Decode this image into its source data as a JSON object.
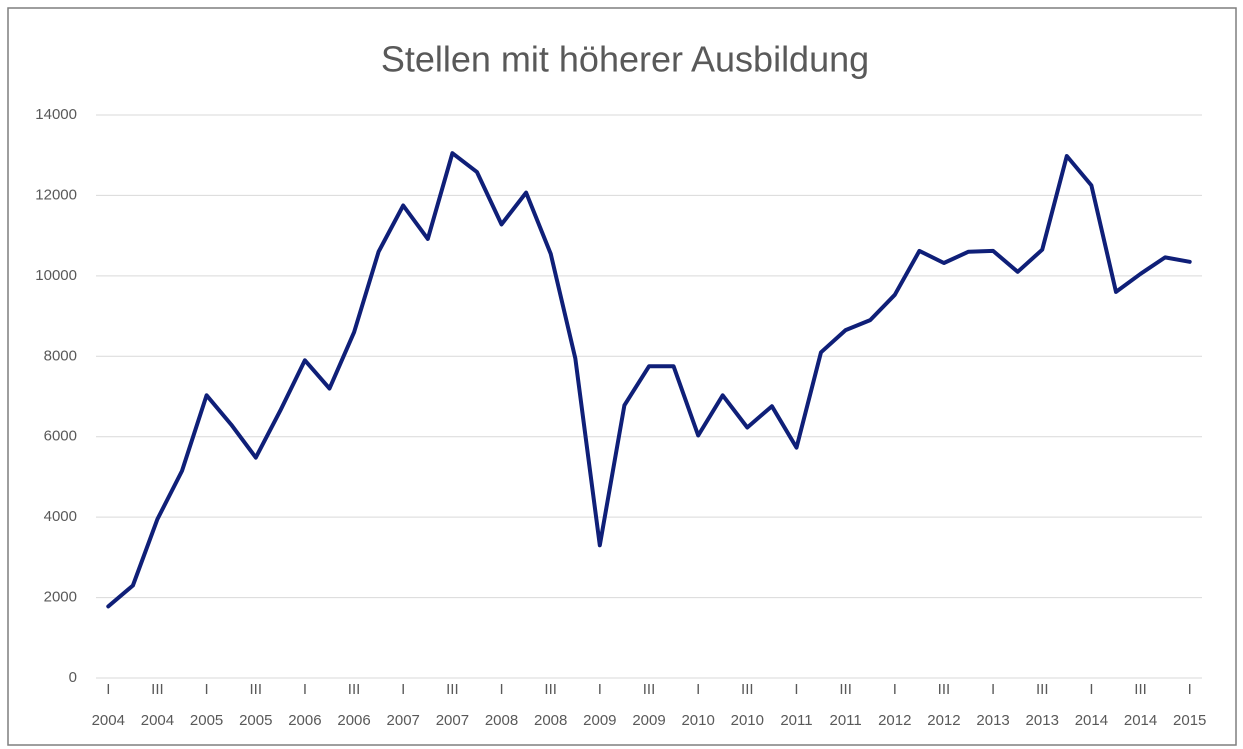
{
  "chart_data": {
    "type": "line",
    "title": "Stellen mit höherer Ausbildung",
    "categories": [
      [
        "I",
        "2004"
      ],
      null,
      [
        "III",
        "2004"
      ],
      null,
      [
        "I",
        "2005"
      ],
      null,
      [
        "III",
        "2005"
      ],
      null,
      [
        "I",
        "2006"
      ],
      null,
      [
        "III",
        "2006"
      ],
      null,
      [
        "I",
        "2007"
      ],
      null,
      [
        "III",
        "2007"
      ],
      null,
      [
        "I",
        "2008"
      ],
      null,
      [
        "III",
        "2008"
      ],
      null,
      [
        "I",
        "2009"
      ],
      null,
      [
        "III",
        "2009"
      ],
      null,
      [
        "I",
        "2010"
      ],
      null,
      [
        "III",
        "2010"
      ],
      null,
      [
        "I",
        "2011"
      ],
      null,
      [
        "III",
        "2011"
      ],
      null,
      [
        "I",
        "2012"
      ],
      null,
      [
        "III",
        "2012"
      ],
      null,
      [
        "I",
        "2013"
      ],
      null,
      [
        "III",
        "2013"
      ],
      null,
      [
        "I",
        "2014"
      ],
      null,
      [
        "III",
        "2014"
      ],
      null,
      [
        "I",
        "2015"
      ]
    ],
    "series": [
      {
        "name": "Stellen mit höherer Ausbildung",
        "color": "#0f1f78",
        "values": [
          1780,
          2300,
          3950,
          5150,
          7030,
          6300,
          5480,
          6650,
          7900,
          7200,
          8600,
          10600,
          11750,
          10920,
          13050,
          12580,
          11280,
          12070,
          10550,
          7950,
          3300,
          6780,
          7750,
          7750,
          6030,
          7030,
          6230,
          6760,
          5730,
          8100,
          8650,
          8900,
          9530,
          10620,
          10320,
          10600,
          10620,
          10100,
          10650,
          12980,
          12250,
          9600,
          10050,
          10460,
          10350
        ]
      }
    ],
    "ylim": [
      0,
      14000
    ],
    "yticks": [
      0,
      2000,
      4000,
      6000,
      8000,
      10000,
      12000,
      14000
    ],
    "grid": true
  }
}
